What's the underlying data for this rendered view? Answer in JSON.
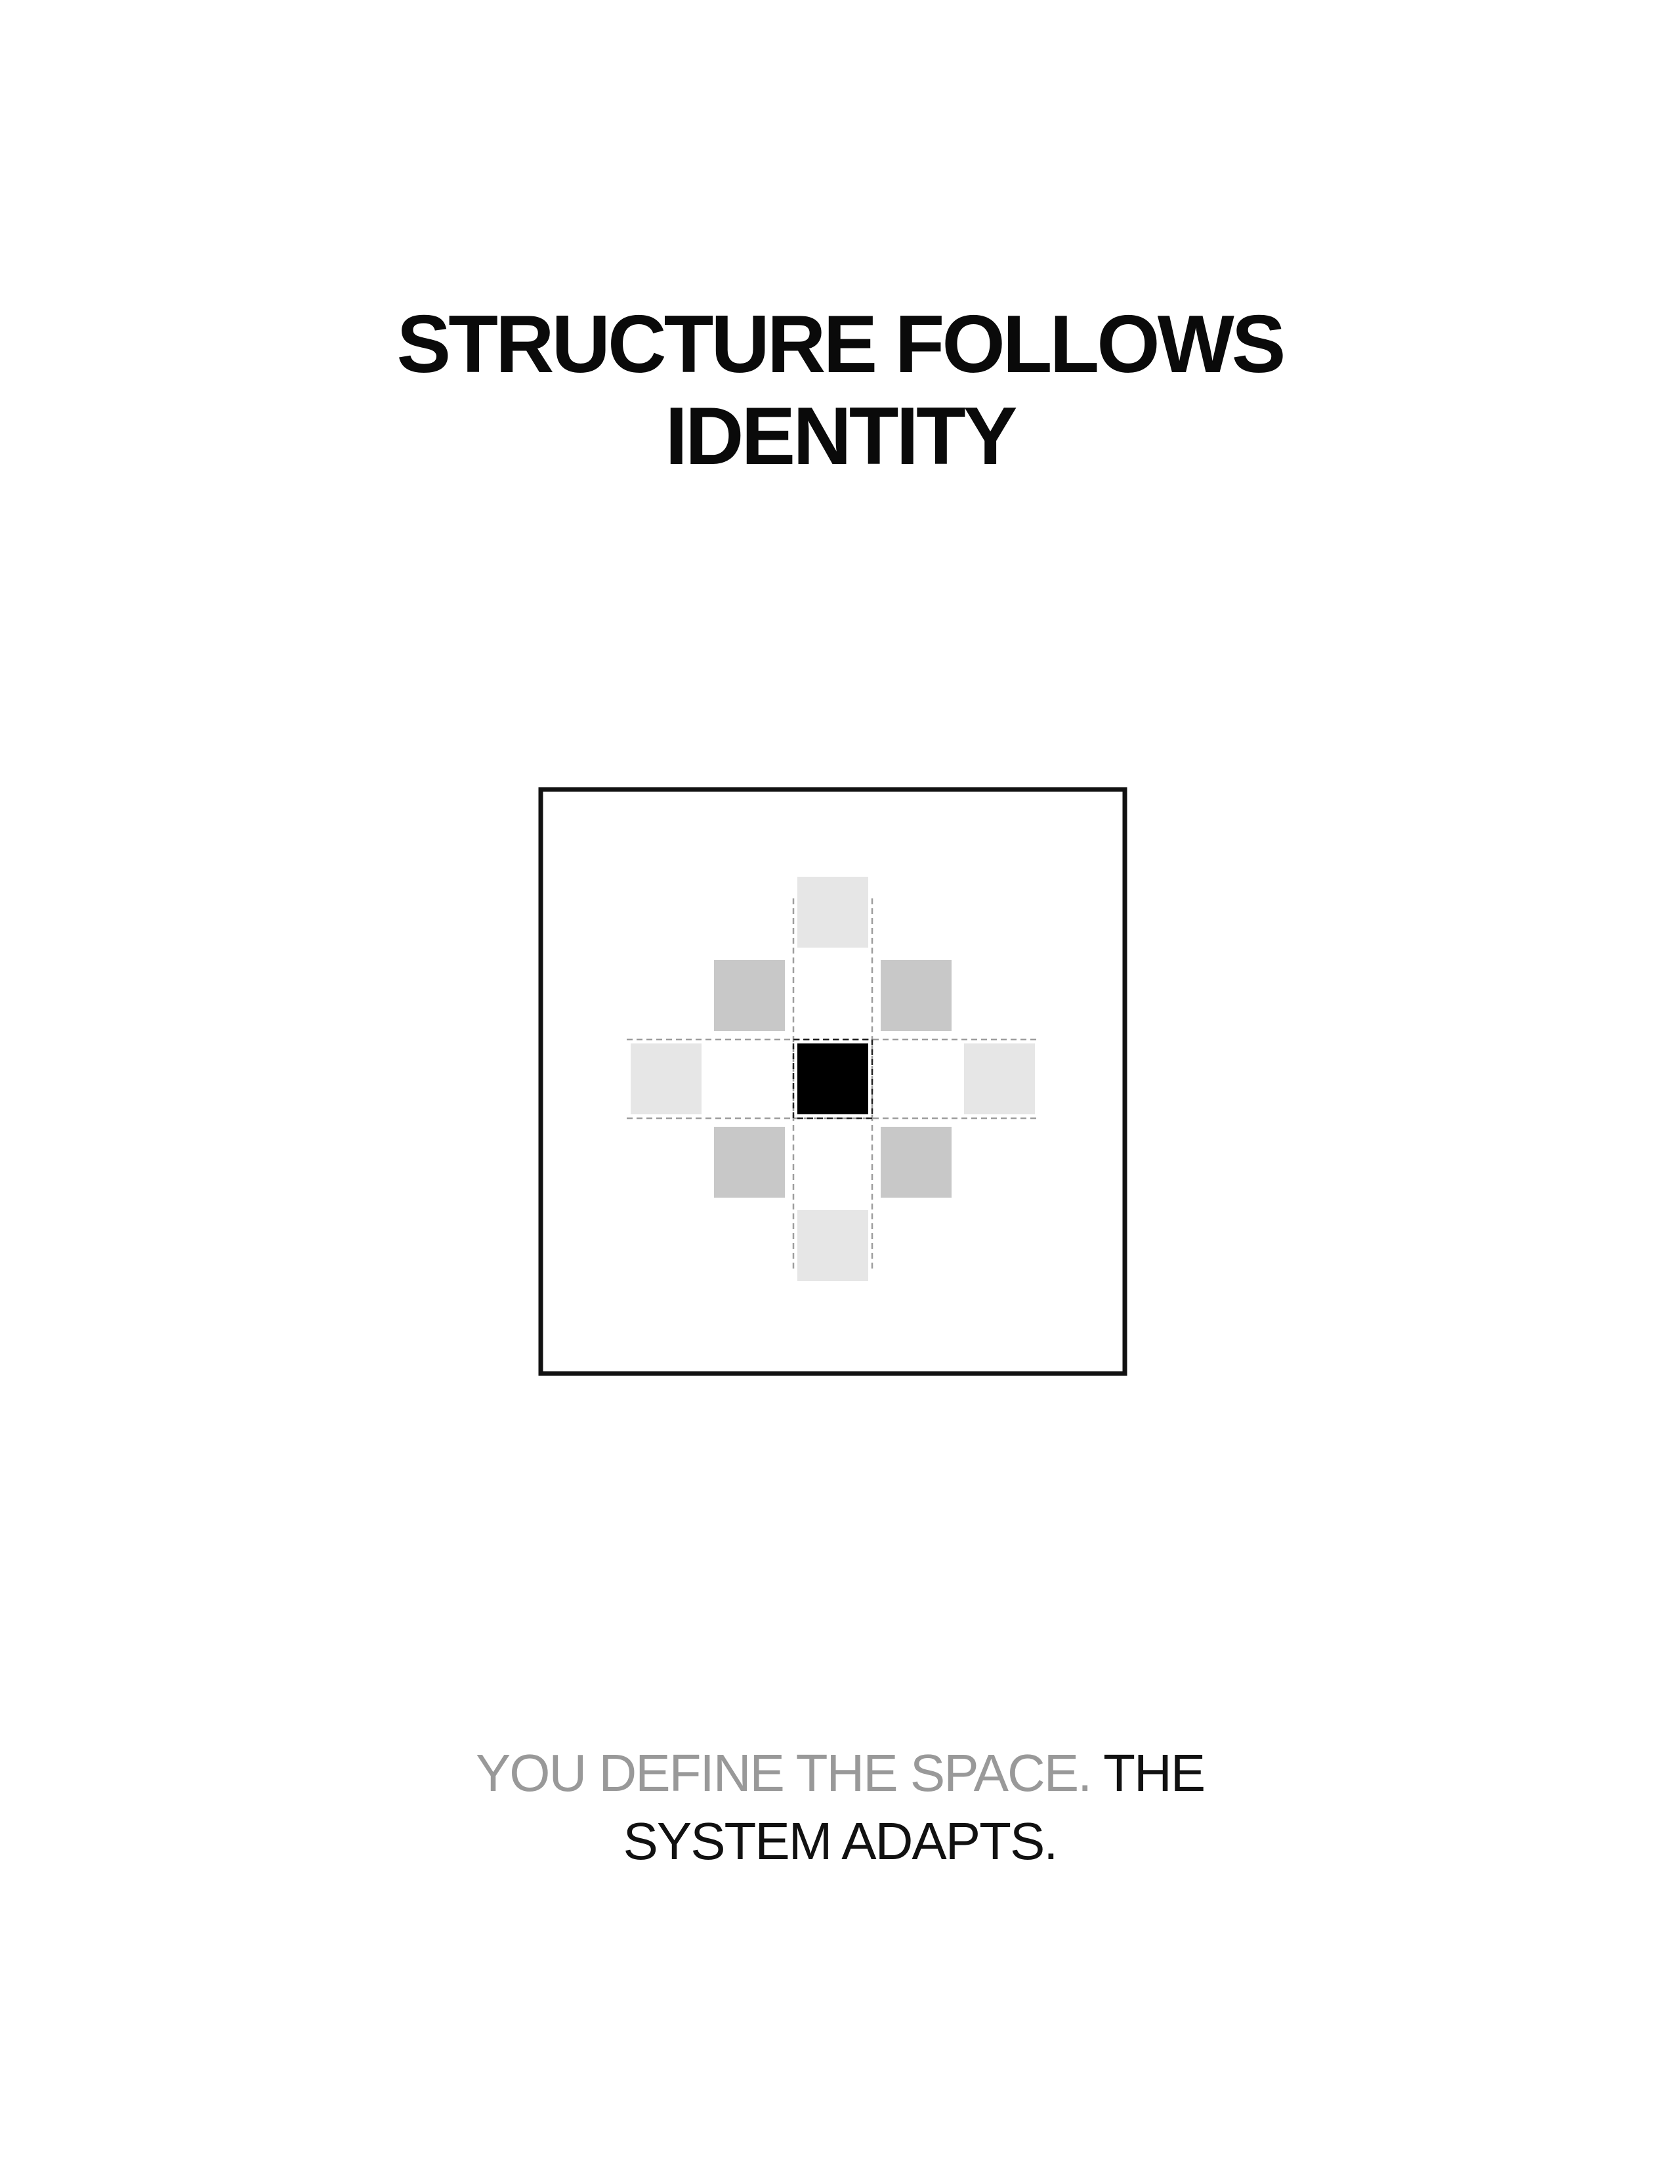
{
  "headline": {
    "line1": "STRUCTURE FOLLOWS",
    "line2": "IDENTITY"
  },
  "diagram": {
    "center_color": "#000000",
    "inner_ring_color": "#c8c8c8",
    "outer_ring_color": "#e6e6e6",
    "frame_color": "#111111",
    "guide_color_dark": "#222222",
    "guide_color_light": "#9e9e9e"
  },
  "tagline": {
    "muted": "YOU DEFINE THE SPACE.",
    "emphasis_1": "THE",
    "emphasis_2": "SYSTEM ADAPTS."
  }
}
